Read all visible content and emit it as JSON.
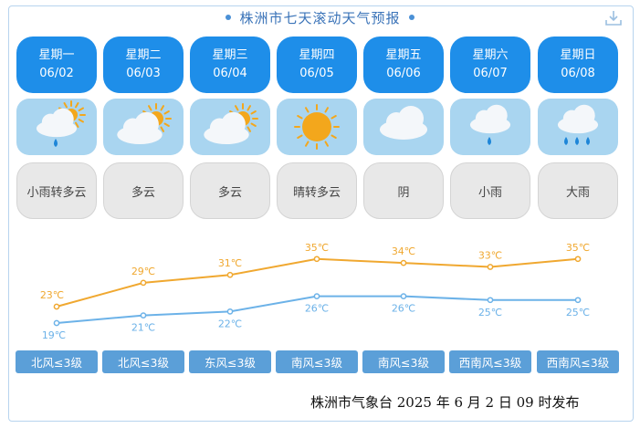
{
  "title": "株洲市七天滚动天气预报",
  "download_icon": "download-icon",
  "days": [
    {
      "weekday": "星期一",
      "date": "06/02",
      "icon": "partly-cloudy-light-rain-icon",
      "weather": "小雨转多云",
      "high": "23℃",
      "low": "19℃",
      "wind": "北风≤3级"
    },
    {
      "weekday": "星期二",
      "date": "06/03",
      "icon": "partly-cloudy-icon",
      "weather": "多云",
      "high": "29℃",
      "low": "21℃",
      "wind": "北风≤3级"
    },
    {
      "weekday": "星期三",
      "date": "06/04",
      "icon": "partly-cloudy-icon",
      "weather": "多云",
      "high": "31℃",
      "low": "22℃",
      "wind": "东风≤3级"
    },
    {
      "weekday": "星期四",
      "date": "06/05",
      "icon": "sunny-icon",
      "weather": "晴转多云",
      "high": "35℃",
      "low": "26℃",
      "wind": "南风≤3级"
    },
    {
      "weekday": "星期五",
      "date": "06/06",
      "icon": "overcast-icon",
      "weather": "阴",
      "high": "34℃",
      "low": "26℃",
      "wind": "南风≤3级"
    },
    {
      "weekday": "星期六",
      "date": "06/07",
      "icon": "light-rain-icon",
      "weather": "小雨",
      "high": "33℃",
      "low": "25℃",
      "wind": "西南风≤3级"
    },
    {
      "weekday": "星期日",
      "date": "06/08",
      "icon": "heavy-rain-icon",
      "weather": "大雨",
      "high": "35℃",
      "low": "25℃",
      "wind": "西南风≤3级"
    }
  ],
  "temps": {
    "high": [
      23,
      29,
      31,
      35,
      34,
      33,
      35
    ],
    "low": [
      19,
      21,
      22,
      26,
      26,
      25,
      25
    ]
  },
  "colors": {
    "high_line": "#f0a830",
    "low_line": "#6cb2e8",
    "day_header": "#1e8ee9",
    "icon_bg": "#a9d5f0",
    "wind_bg": "#5b9fd8"
  },
  "footer": "株洲市气象台 2025 年 6 月 2 日 09 时发布"
}
